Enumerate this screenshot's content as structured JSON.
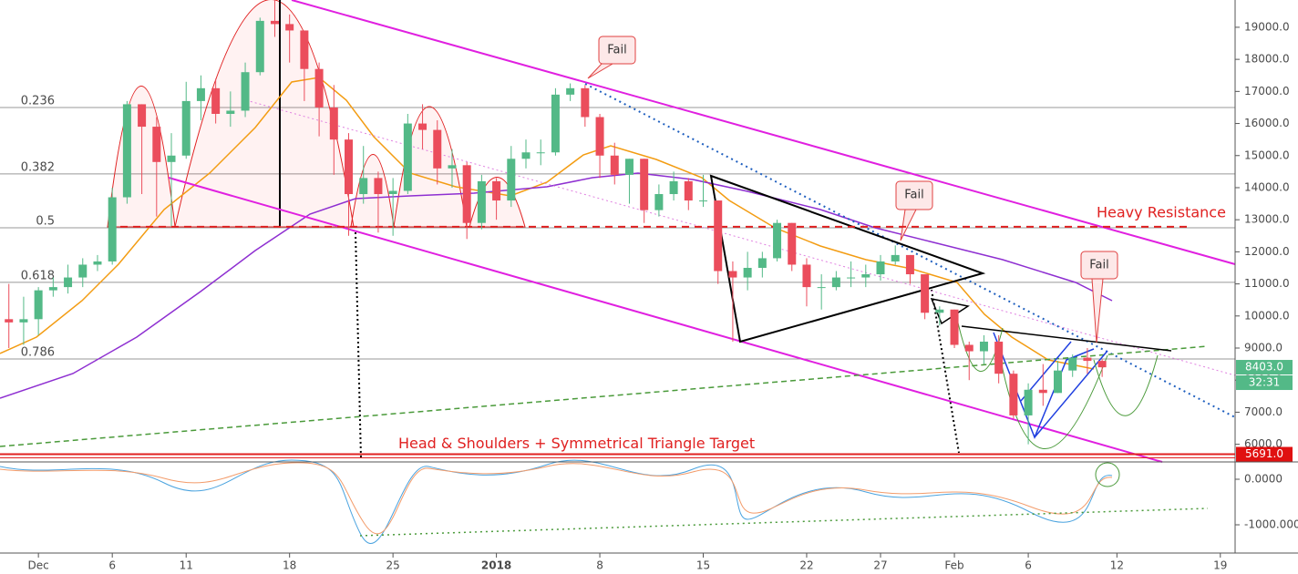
{
  "chart_data": {
    "type": "candlestick",
    "x": [
      -2,
      -1,
      0,
      1,
      2,
      3,
      4,
      5,
      6,
      7,
      8,
      9,
      10,
      11,
      12,
      13,
      14,
      15,
      16,
      17,
      18,
      19,
      20,
      21,
      22,
      23,
      24,
      25,
      26,
      27,
      28,
      29,
      30,
      31,
      32,
      33,
      34,
      35,
      36,
      37,
      38,
      39,
      40,
      41,
      42,
      43,
      44,
      45,
      46,
      47,
      48,
      49,
      50,
      51,
      52,
      53,
      54,
      55,
      56,
      57,
      58,
      59,
      60,
      61,
      62,
      63,
      64,
      65,
      66,
      67,
      68,
      69,
      70,
      71,
      72
    ],
    "open": [
      9900,
      9800,
      9900,
      10800,
      10900,
      11200,
      11600,
      11700,
      13700,
      16600,
      15900,
      14800,
      15000,
      16700,
      17100,
      16300,
      16400,
      17600,
      19200,
      19100,
      18900,
      17700,
      16500,
      15500,
      13800,
      14300,
      13800,
      13900,
      16000,
      15800,
      14600,
      14700,
      12900,
      14200,
      13600,
      14900,
      15100,
      15100,
      16900,
      17100,
      16200,
      15000,
      14400,
      14900,
      13300,
      13800,
      14200,
      13600,
      13600,
      11400,
      11200,
      11500,
      11800,
      12900,
      11600,
      10900,
      10900,
      11200,
      11200,
      11300,
      11700,
      11900,
      11300,
      10100,
      10200,
      9100,
      8900,
      9200,
      8200,
      6900,
      7700,
      7600,
      8300,
      8700,
      8600
    ],
    "high": [
      11000,
      10600,
      10900,
      11200,
      11600,
      11800,
      11900,
      14000,
      16700,
      16600,
      16200,
      15700,
      17300,
      17500,
      17400,
      17000,
      17900,
      19300,
      19850,
      19400,
      18900,
      17900,
      17200,
      15700,
      15300,
      14500,
      14300,
      16300,
      16600,
      16100,
      15200,
      14800,
      14400,
      14300,
      15300,
      15500,
      15500,
      17100,
      17250,
      17200,
      16300,
      15400,
      14900,
      14900,
      14100,
      14500,
      14300,
      14400,
      13600,
      11700,
      12000,
      12000,
      13000,
      12900,
      11800,
      11300,
      11400,
      11700,
      11600,
      11900,
      12200,
      11900,
      11300,
      10300,
      10200,
      9200,
      9400,
      9400,
      8300,
      7900,
      8500,
      8600,
      8800,
      9000,
      8650
    ],
    "low": [
      9000,
      9100,
      9400,
      10600,
      10700,
      10900,
      11400,
      11600,
      13500,
      13800,
      13100,
      12800,
      14900,
      16100,
      16000,
      15900,
      16200,
      17500,
      18700,
      17900,
      16700,
      15600,
      14400,
      12500,
      13500,
      12600,
      12500,
      13800,
      15200,
      14100,
      14000,
      12400,
      12700,
      13000,
      13400,
      14600,
      14700,
      15000,
      16700,
      15900,
      14300,
      14100,
      13500,
      12900,
      13100,
      13600,
      13300,
      13400,
      11000,
      9200,
      10800,
      11200,
      11700,
      11400,
      10300,
      10200,
      10800,
      10900,
      10900,
      11100,
      11600,
      11000,
      9900,
      9700,
      9000,
      8000,
      8500,
      7900,
      6800,
      6000,
      7200,
      7600,
      8100,
      8200,
      8100
    ],
    "close": [
      9800,
      9900,
      10800,
      10900,
      11200,
      11600,
      11700,
      13700,
      16600,
      15900,
      14800,
      15000,
      16700,
      17100,
      16300,
      16400,
      17600,
      19200,
      19100,
      18900,
      17700,
      16500,
      15500,
      13800,
      14300,
      13800,
      13900,
      16000,
      15800,
      14600,
      14700,
      12900,
      14200,
      13600,
      14900,
      15100,
      15100,
      16900,
      17100,
      16200,
      15000,
      14400,
      14900,
      13300,
      13800,
      14200,
      13600,
      13600,
      11400,
      11200,
      11500,
      11800,
      12900,
      11600,
      10900,
      10900,
      11200,
      11200,
      11300,
      11700,
      11900,
      11300,
      10100,
      10200,
      9100,
      8900,
      9200,
      8200,
      6900,
      7700,
      7600,
      8300,
      8700,
      8600,
      8400
    ],
    "up_color": "#53b987",
    "down_color": "#eb4d5c",
    "xlim": [
      -2.6,
      81
    ],
    "xticks": [
      {
        "value": 0,
        "label": "Dec"
      },
      {
        "value": 5,
        "label": "6"
      },
      {
        "value": 10,
        "label": "11"
      },
      {
        "value": 17,
        "label": "18"
      },
      {
        "value": 24,
        "label": "25"
      },
      {
        "value": 31,
        "label": "2018"
      },
      {
        "value": 38,
        "label": "8"
      },
      {
        "value": 45,
        "label": "15"
      },
      {
        "value": 52,
        "label": "22"
      },
      {
        "value": 57,
        "label": "27"
      },
      {
        "value": 62,
        "label": "Feb"
      },
      {
        "value": 67,
        "label": "6"
      },
      {
        "value": 73,
        "label": "12"
      },
      {
        "value": 80,
        "label": "19"
      }
    ],
    "ylim": [
      5450,
      19850
    ],
    "yticks": [
      {
        "value": 6000,
        "label": "6000.0"
      },
      {
        "value": 7000,
        "label": "7000.0"
      },
      {
        "value": 8000,
        "label": "8000.0"
      },
      {
        "value": 9000,
        "label": "9000.0"
      },
      {
        "value": 10000,
        "label": "10000.0"
      },
      {
        "value": 11000,
        "label": "11000.0"
      },
      {
        "value": 12000,
        "label": "12000.0"
      },
      {
        "value": 13000,
        "label": "13000.0"
      },
      {
        "value": 14000,
        "label": "14000.0"
      },
      {
        "value": 15000,
        "label": "15000.0"
      },
      {
        "value": 16000,
        "label": "16000.0"
      },
      {
        "value": 17000,
        "label": "17000.0"
      },
      {
        "value": 18000,
        "label": "18000.0"
      },
      {
        "value": 19000,
        "label": "19000.0"
      }
    ],
    "fib_levels": [
      {
        "level": 0.236,
        "price": 16500
      },
      {
        "level": 0.382,
        "price": 14430
      },
      {
        "level": 0.5,
        "price": 12750
      },
      {
        "level": 0.618,
        "price": 11050
      },
      {
        "level": 0.786,
        "price": 8660
      }
    ],
    "resistance_level": 12780,
    "resistance_label": "Heavy Resistance",
    "target_text": "Head & Shoulders + Symmetrical Triangle Target",
    "target_line": {
      "value": 5691,
      "label": "5691.0"
    },
    "last_price": {
      "value": 8403,
      "label": "8403.0"
    },
    "countdown": "32:31",
    "callouts": [
      "Fail",
      "Fail",
      "Fail"
    ],
    "macd_ylim": [
      -1620,
      380
    ],
    "macd_ticks": [
      {
        "value": 0,
        "label": "0.0000"
      },
      {
        "value": -1000,
        "label": "-1000.0000"
      }
    ]
  }
}
